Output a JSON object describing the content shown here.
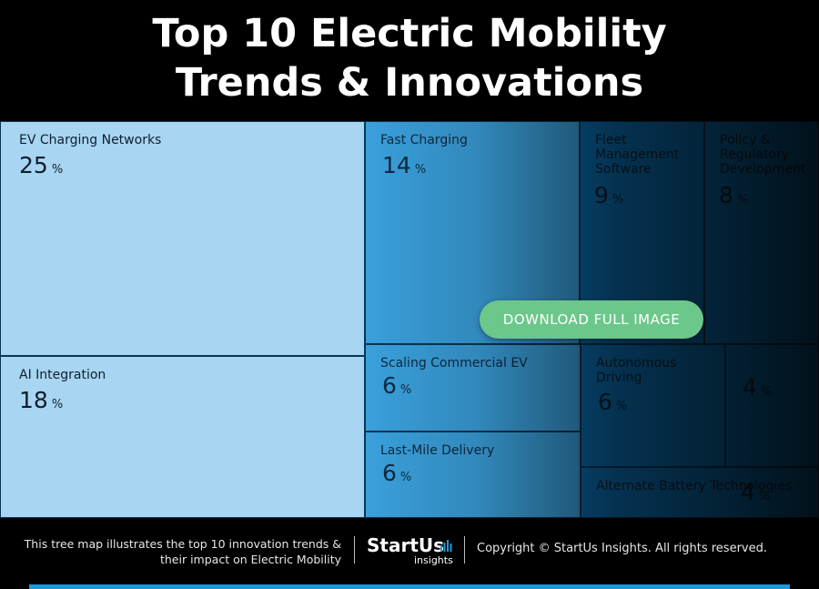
{
  "header": {
    "title_line1": "Top 10 Electric Mobility",
    "title_line2": "Trends & Innovations"
  },
  "chart_data": {
    "type": "treemap",
    "title": "Top 10 Electric Mobility Trends & Innovations",
    "unit": "%",
    "items": [
      {
        "name": "EV Charging Networks",
        "value": 25
      },
      {
        "name": "AI Integration",
        "value": 18
      },
      {
        "name": "Fast Charging",
        "value": 14
      },
      {
        "name": "Fleet Management Software",
        "value": 9
      },
      {
        "name": "Policy & Regulatory Development",
        "value": 8
      },
      {
        "name": "Scaling Commercial EV",
        "value": 6
      },
      {
        "name": "Last-Mile Delivery",
        "value": 6
      },
      {
        "name": "Autonomous Driving",
        "value": 6
      },
      {
        "name": "",
        "value": 4
      },
      {
        "name": "Alternate Battery Technologies",
        "value": 4
      }
    ]
  },
  "overlay": {
    "download_label": "DOWNLOAD FULL IMAGE"
  },
  "footer": {
    "description_line1": "This tree map illustrates the top 10 innovation trends &",
    "description_line2": "their impact on Electric Mobility",
    "logo_main": "StartUs",
    "logo_sub": "insights",
    "copyright": "Copyright © StartUs Insights. All rights reserved."
  },
  "colors": {
    "background": "#000000",
    "tile_light": "#a8d5f2",
    "tile_mid": "#3aa0dc",
    "tile_dark": "#0a6fb3",
    "button": "#6cc78a",
    "accent_bar": "#1d9ad6"
  }
}
